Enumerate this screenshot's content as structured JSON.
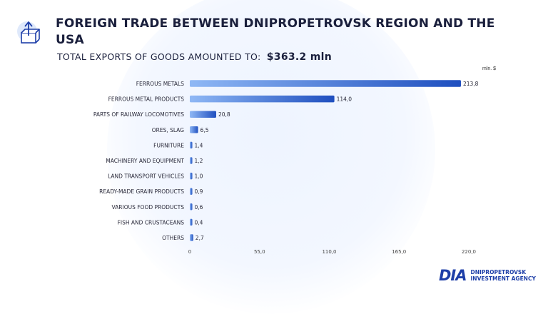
{
  "header": {
    "title": "FOREIGN TRADE BETWEEN DNIPROPETROVSK REGION AND THE USA",
    "subtitle_prefix": "TOTAL EXPORTS OF GOODS AMOUNTED TO:",
    "subtitle_total": "$363.2 mln"
  },
  "chart_data": {
    "type": "bar",
    "orientation": "horizontal",
    "unit": "mln. $",
    "categories": [
      "FERROUS METALS",
      "FERROUS METAL PRODUCTS",
      "PARTS OF RAILWAY LOCOMOTIVES",
      "ORES, SLAG",
      "FURNITURE",
      "MACHINERY AND EQUIPMENT",
      "LAND TRANSPORT VEHICLES",
      "READY-MADE GRAIN PRODUCTS",
      "VARIOUS FOOD PRODUCTS",
      "FISH AND CRUSTACEANS",
      "OTHERS"
    ],
    "values": [
      213.8,
      114.0,
      20.8,
      6.5,
      1.4,
      1.2,
      1.0,
      0.9,
      0.6,
      0.4,
      2.7
    ],
    "value_labels": [
      "213,8",
      "114,0",
      "20,8",
      "6,5",
      "1,4",
      "1,2",
      "1,0",
      "0,9",
      "0,6",
      "0,4",
      "2,7"
    ],
    "xticks": [
      0,
      55,
      110,
      165,
      220
    ],
    "xtick_labels": [
      "0",
      "55,0",
      "110,0",
      "165,0",
      "220,0"
    ],
    "xlim": [
      0,
      220
    ],
    "grid": false,
    "colors": {
      "bar_start": "#8fb8f5",
      "bar_end": "#1f4fbf"
    }
  },
  "brand": {
    "mark": "DIA",
    "line1": "DNIPROPETROVSK",
    "line2": "INVESTMENT AGENCY"
  },
  "icons": {
    "header": "export-box-icon"
  }
}
